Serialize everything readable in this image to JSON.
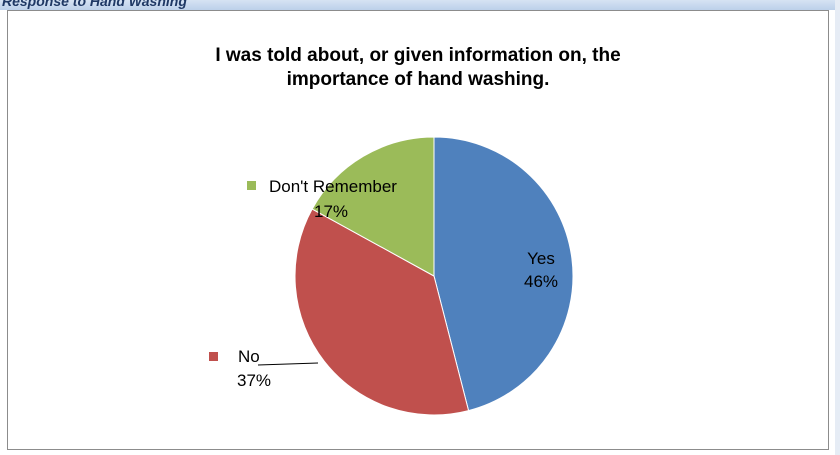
{
  "header": {
    "text": "Response to Hand Washing"
  },
  "chart_data": {
    "type": "pie",
    "title_lines": [
      "I was told about, or given information on, the",
      "importance of hand washing."
    ],
    "categories": [
      "Yes",
      "No",
      "Don't Remember"
    ],
    "values": [
      46,
      37,
      17
    ],
    "value_labels": [
      "46%",
      "37%",
      "17%"
    ],
    "colors": [
      "#4f81bd",
      "#c0504d",
      "#9bbb59"
    ],
    "legend": "none"
  }
}
